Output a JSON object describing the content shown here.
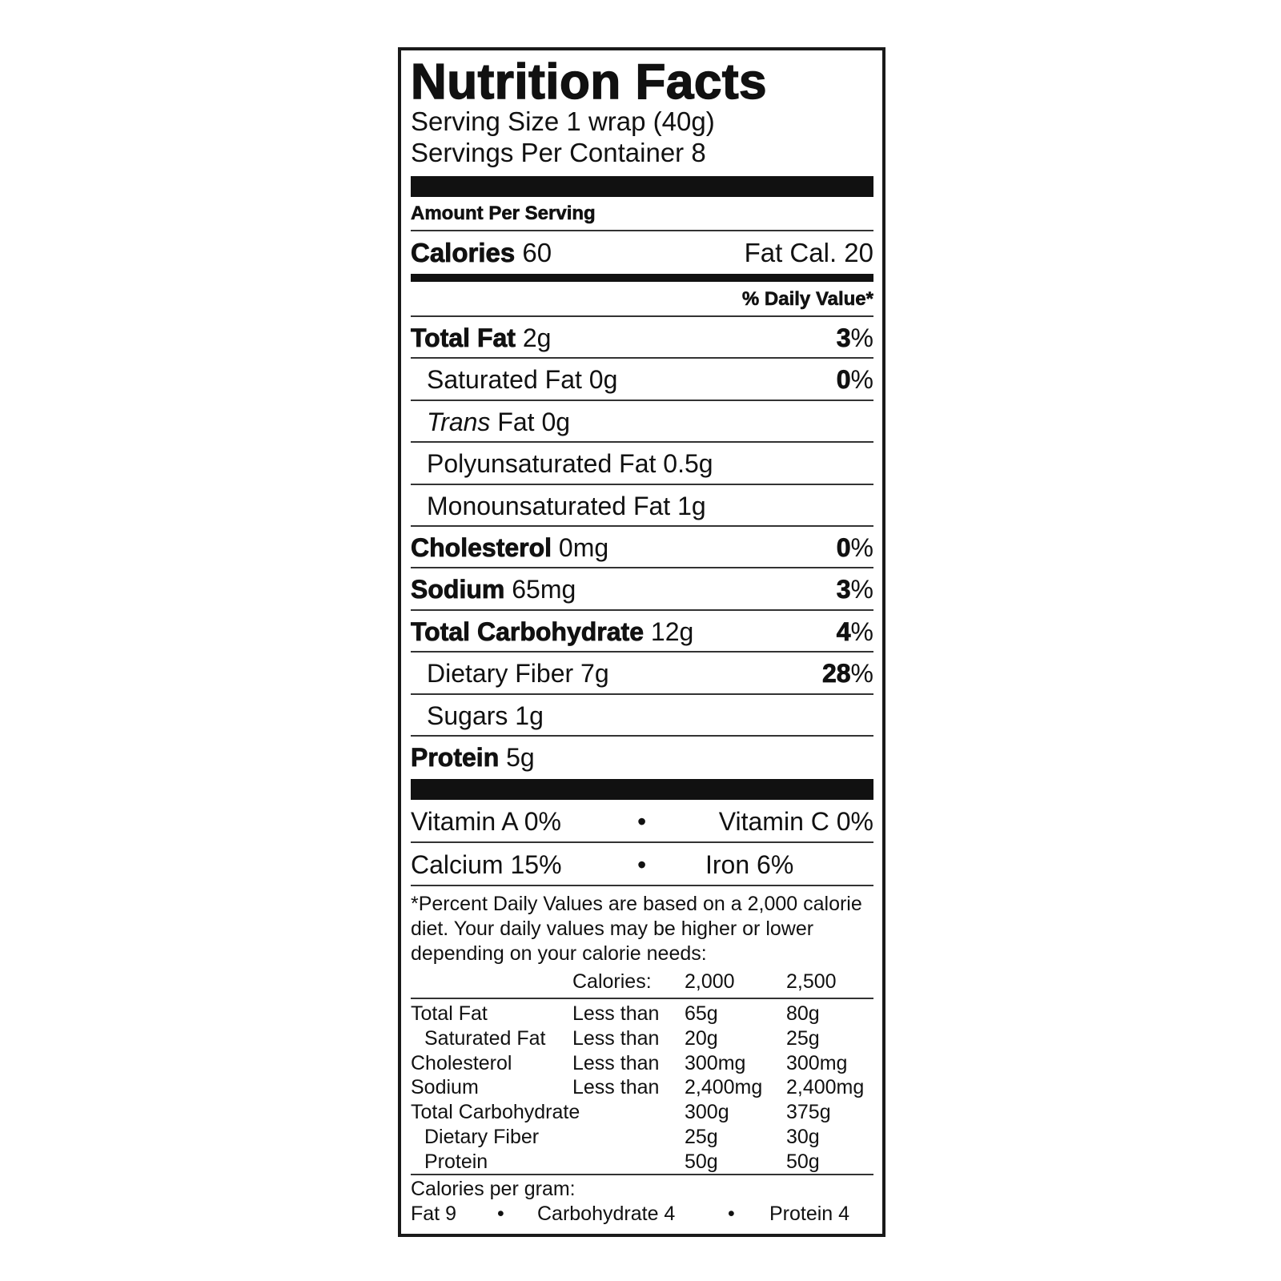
{
  "title": "Nutrition Facts",
  "serving_size": "Serving Size 1 wrap (40g)",
  "servings_per_container": "Servings Per Container 8",
  "amount_per_serving": "Amount Per Serving",
  "calories": {
    "label": "Calories",
    "value": "60",
    "fat_cal": "Fat Cal. 20"
  },
  "daily_value_header": "% Daily Value*",
  "nutrients": [
    {
      "label": "Total Fat",
      "amount": "2g",
      "dv": "3",
      "bold": true
    },
    {
      "label": "Saturated Fat",
      "amount": "0g",
      "dv": "0",
      "indent": true
    },
    {
      "label_italic": "Trans",
      "label": "Fat",
      "amount": "0g",
      "indent": true
    },
    {
      "label": "Polyunsaturated Fat",
      "amount": "0.5g",
      "indent": true
    },
    {
      "label": "Monounsaturated Fat",
      "amount": "1g",
      "indent": true
    },
    {
      "label": "Cholesterol",
      "amount": "0mg",
      "dv": "0",
      "bold": true
    },
    {
      "label": "Sodium",
      "amount": "65mg",
      "dv": "3",
      "bold": true
    },
    {
      "label": "Total Carbohydrate",
      "amount": "12g",
      "dv": "4",
      "bold": true
    },
    {
      "label": "Dietary Fiber",
      "amount": "7g",
      "dv": "28",
      "indent": true
    },
    {
      "label": "Sugars",
      "amount": "1g",
      "indent": true
    },
    {
      "label": "Protein",
      "amount": "5g",
      "bold": true
    }
  ],
  "percent_sign": "%",
  "vitamins": {
    "vitamin_a": "Vitamin A 0%",
    "vitamin_c": "Vitamin C 0%",
    "calcium": "Calcium 15%",
    "iron": "Iron 6%",
    "bullet": "•"
  },
  "footnote": "*Percent Daily Values are based on a 2,000 calorie diet. Your daily values may be higher or lower depending on your calorie needs:",
  "reference_table": {
    "header": [
      "",
      "Calories:",
      "2,000",
      "2,500"
    ],
    "rows": [
      {
        "nutrient": "Total Fat",
        "qualifier": "Less than",
        "v2000": "65g",
        "v2500": "80g"
      },
      {
        "nutrient": "Saturated Fat",
        "qualifier": "Less than",
        "v2000": "20g",
        "v2500": "25g",
        "indent": true
      },
      {
        "nutrient": "Cholesterol",
        "qualifier": "Less than",
        "v2000": "300mg",
        "v2500": "300mg"
      },
      {
        "nutrient": "Sodium",
        "qualifier": "Less than",
        "v2000": "2,400mg",
        "v2500": "2,400mg"
      },
      {
        "nutrient": "Total Carbohydrate",
        "qualifier": "",
        "v2000": "300g",
        "v2500": "375g"
      },
      {
        "nutrient": "Dietary Fiber",
        "qualifier": "",
        "v2000": "25g",
        "v2500": "30g",
        "indent": true
      },
      {
        "nutrient": "Protein",
        "qualifier": "",
        "v2000": "50g",
        "v2500": "50g",
        "indent": true
      }
    ]
  },
  "calories_per_gram": {
    "label": "Calories per gram:",
    "fat": "Fat 9",
    "carbohydrate": "Carbohydrate 4",
    "protein": "Protein 4",
    "bullet": "•"
  }
}
